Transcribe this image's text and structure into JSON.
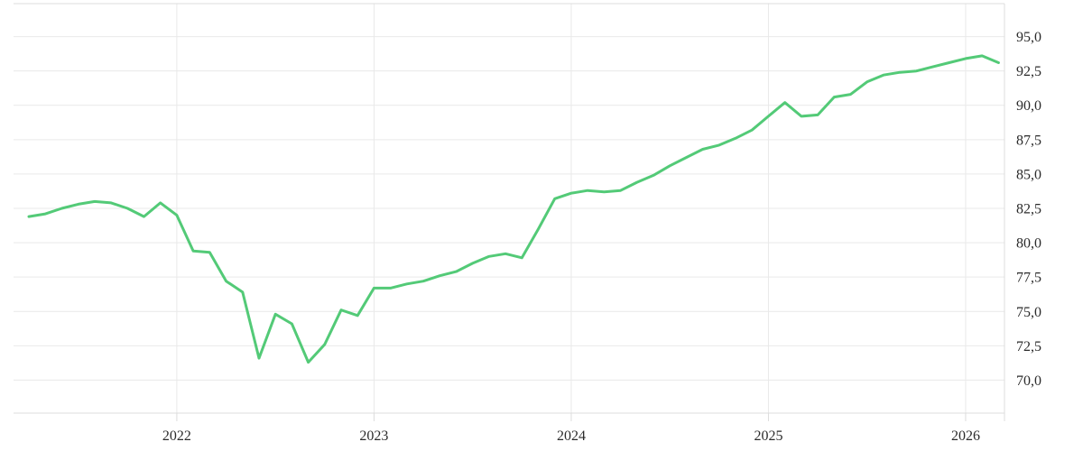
{
  "chart_data": {
    "type": "line",
    "title": "",
    "xlabel": "",
    "ylabel": "",
    "legend": "none",
    "grid": true,
    "background": "#ffffff",
    "line_color": "#53ca77",
    "grid_color": "#e9e9e9",
    "axis_color": "#dcdcdc",
    "label_color": "#2b2b2b",
    "y_axis_side": "right",
    "decimal_separator": ",",
    "ylim": [
      67.6,
      97.4
    ],
    "xlim_years": [
      2021.172,
      2026.197
    ],
    "x_ticks": [
      {
        "label": "2022",
        "year": 2022
      },
      {
        "label": "2023",
        "year": 2023
      },
      {
        "label": "2024",
        "year": 2024
      },
      {
        "label": "2025",
        "year": 2025
      },
      {
        "label": "2026",
        "year": 2026
      }
    ],
    "y_ticks": [
      {
        "label": "95,0",
        "value": 95.0
      },
      {
        "label": "92,5",
        "value": 92.5
      },
      {
        "label": "90,0",
        "value": 90.0
      },
      {
        "label": "87,5",
        "value": 87.5
      },
      {
        "label": "85,0",
        "value": 85.0
      },
      {
        "label": "82,5",
        "value": 82.5
      },
      {
        "label": "80,0",
        "value": 80.0
      },
      {
        "label": "77,5",
        "value": 77.5
      },
      {
        "label": "75,0",
        "value": 75.0
      },
      {
        "label": "72,5",
        "value": 72.5
      },
      {
        "label": "70,0",
        "value": 70.0
      }
    ],
    "series": [
      {
        "name": "value",
        "frequency": "monthly",
        "months": [
          "2021-04",
          "2021-05",
          "2021-06",
          "2021-07",
          "2021-08",
          "2021-09",
          "2021-10",
          "2021-11",
          "2021-12",
          "2022-01",
          "2022-02",
          "2022-03",
          "2022-04",
          "2022-05",
          "2022-06",
          "2022-07",
          "2022-08",
          "2022-09",
          "2022-10",
          "2022-11",
          "2022-12",
          "2023-01",
          "2023-02",
          "2023-03",
          "2023-04",
          "2023-05",
          "2023-06",
          "2023-07",
          "2023-08",
          "2023-09",
          "2023-10",
          "2023-11",
          "2023-12",
          "2024-01",
          "2024-02",
          "2024-03",
          "2024-04",
          "2024-05",
          "2024-06",
          "2024-07",
          "2024-08",
          "2024-09",
          "2024-10",
          "2024-11",
          "2024-12",
          "2025-01",
          "2025-02",
          "2025-03",
          "2025-04",
          "2025-05",
          "2025-06",
          "2025-07",
          "2025-08",
          "2025-09",
          "2025-10",
          "2025-11",
          "2025-12",
          "2026-01",
          "2026-02",
          "2026-03"
        ],
        "values": [
          81.9,
          82.1,
          82.5,
          82.8,
          83.0,
          82.9,
          82.5,
          81.9,
          82.9,
          82.0,
          79.4,
          79.3,
          77.2,
          76.4,
          71.6,
          74.8,
          74.1,
          71.3,
          72.6,
          75.1,
          74.7,
          76.7,
          76.7,
          77.0,
          77.2,
          77.6,
          77.9,
          78.5,
          79.0,
          79.2,
          78.9,
          81.0,
          83.2,
          83.6,
          83.8,
          83.7,
          83.8,
          84.4,
          84.9,
          85.6,
          86.2,
          86.8,
          87.1,
          87.6,
          88.2,
          89.2,
          90.2,
          89.2,
          89.3,
          90.6,
          90.8,
          91.7,
          92.2,
          92.4,
          92.5,
          92.8,
          93.1,
          93.4,
          93.6,
          93.1
        ]
      }
    ]
  }
}
